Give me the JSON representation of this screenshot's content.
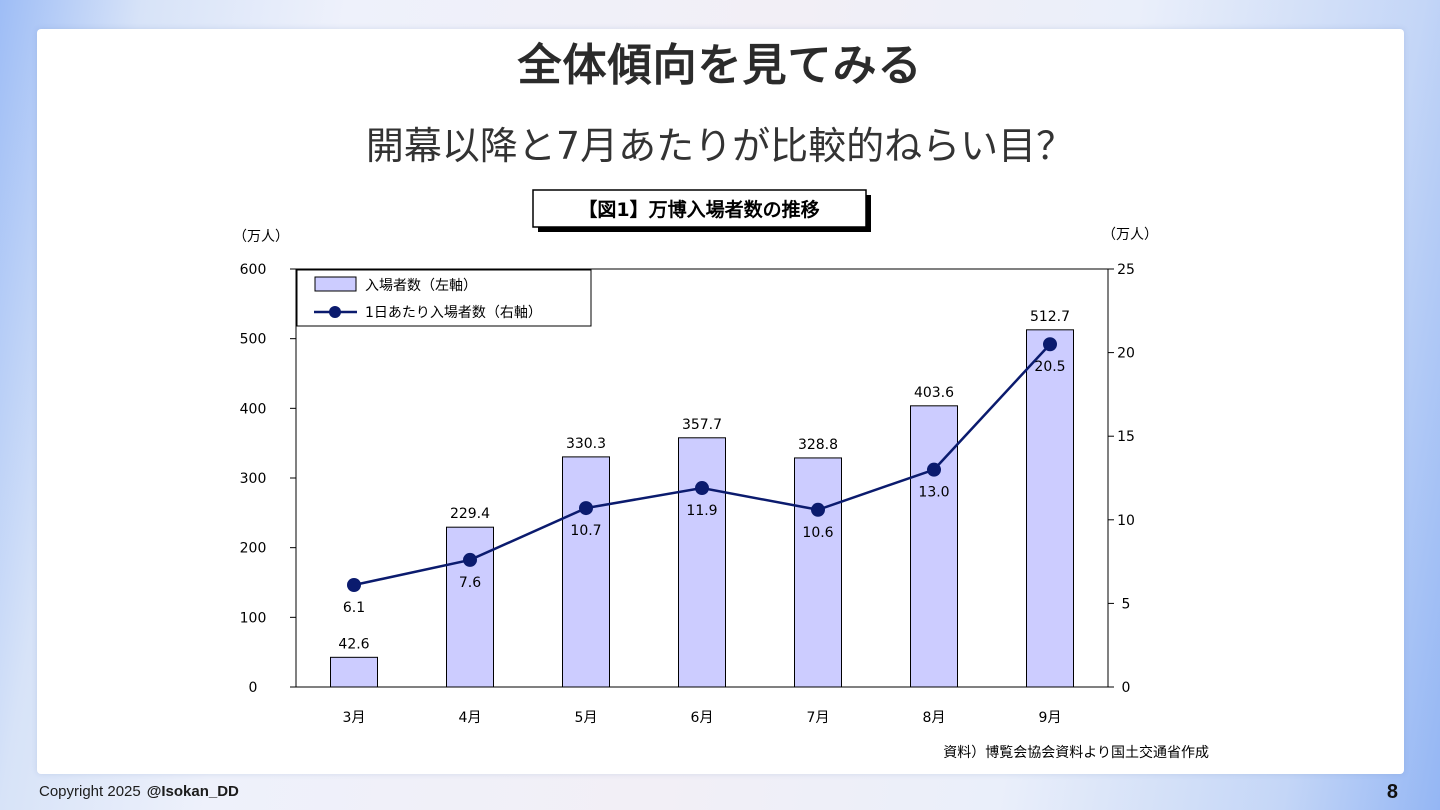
{
  "slide": {
    "title": "全体傾向を見てみる",
    "subtitle": "開幕以降と7月あたりが比較的ねらい目？",
    "page_number": "8"
  },
  "footer": {
    "copyright": "Copyright 2025",
    "handle": "@Isokan_DD"
  },
  "chart_data": {
    "type": "bar",
    "title": "【図1】万博入場者数の推移",
    "source": "資料）博覧会協会資料より国土交通省作成",
    "categories": [
      "3月",
      "4月",
      "5月",
      "6月",
      "7月",
      "8月",
      "9月"
    ],
    "y_left": {
      "unit": "（万人）",
      "ylim": [
        0,
        600
      ],
      "ticks": [
        "0",
        "100",
        "200",
        "300",
        "400",
        "500",
        "600"
      ]
    },
    "y_right": {
      "unit": "（万人）",
      "ylim": [
        0,
        25
      ],
      "ticks": [
        "0",
        "5",
        "10",
        "15",
        "20",
        "25"
      ]
    },
    "grid": false,
    "legend_position": "top-left",
    "series": [
      {
        "name": "入場者数（左軸）",
        "type": "bar",
        "axis": "left",
        "color": "#ccccff",
        "values": [
          42.6,
          229.4,
          330.3,
          357.7,
          328.8,
          403.6,
          512.7
        ],
        "labels": [
          "42.6",
          "229.4",
          "330.3",
          "357.7",
          "328.8",
          "403.6",
          "512.7"
        ]
      },
      {
        "name": "1日あたり入場者数（右軸）",
        "type": "line",
        "axis": "right",
        "color": "#0b1b6e",
        "values": [
          6.1,
          7.6,
          10.7,
          11.9,
          10.6,
          13.0,
          20.5
        ],
        "labels": [
          "6.1",
          "7.6",
          "10.7",
          "11.9",
          "10.6",
          "13.0",
          "20.5"
        ]
      }
    ]
  }
}
